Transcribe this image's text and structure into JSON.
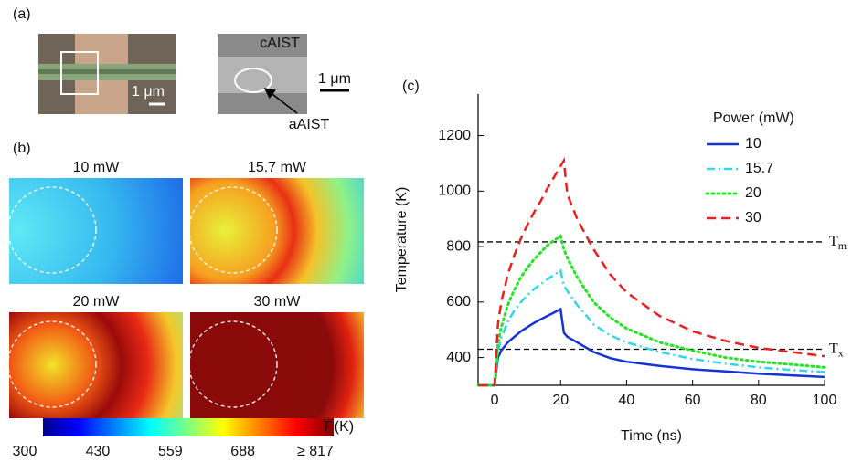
{
  "panels": {
    "a": {
      "label": "(a)",
      "scale_left": "1 μm",
      "scale_right": "1 μm",
      "label_crystal": "cAIST",
      "label_amorphous": "aAIST"
    },
    "b": {
      "label": "(b)",
      "maps": [
        {
          "title": "10 mW"
        },
        {
          "title": "15.7 mW"
        },
        {
          "title": "20 mW"
        },
        {
          "title": "30 mW"
        }
      ],
      "colorbar": {
        "label_symbol": "T",
        "label_unit": "(K)",
        "lim": [
          300,
          817
        ],
        "ticks": [
          300,
          430,
          559,
          688,
          {
            "value": 817,
            "label": "≥ 817"
          }
        ]
      }
    }
  },
  "chart_data": {
    "type": "line",
    "label": "(c)",
    "x_label": "Time (ns)",
    "y_label": "Temperature (K)",
    "xlim": [
      -5,
      100
    ],
    "ylim": [
      300,
      1350
    ],
    "xticks": [
      0,
      20,
      40,
      60,
      80,
      100
    ],
    "yticks": [
      400,
      600,
      800,
      1000,
      1200
    ],
    "legend_title": "Power (mW)",
    "x": [
      -5,
      0,
      1,
      2,
      4,
      6,
      8,
      10,
      12,
      14,
      16,
      18,
      20,
      21,
      22,
      25,
      30,
      35,
      40,
      50,
      60,
      70,
      80,
      90,
      100
    ],
    "series": [
      {
        "name": "10",
        "color": "#1533d6",
        "dash": "solid",
        "values": [
          300,
          300,
          400,
          425,
          455,
          475,
          495,
          510,
          525,
          538,
          550,
          562,
          575,
          490,
          475,
          455,
          420,
          398,
          385,
          370,
          358,
          350,
          342,
          336,
          330
        ]
      },
      {
        "name": "15.7",
        "color": "#2fd8ea",
        "dash": "dashdot",
        "values": [
          300,
          300,
          420,
          470,
          530,
          570,
          600,
          625,
          648,
          665,
          682,
          698,
          714,
          660,
          640,
          590,
          520,
          480,
          455,
          420,
          395,
          378,
          365,
          355,
          348
        ]
      },
      {
        "name": "20",
        "color": "#22e622",
        "dash": "dotted",
        "values": [
          300,
          300,
          450,
          510,
          590,
          645,
          690,
          725,
          755,
          780,
          805,
          822,
          838,
          790,
          760,
          690,
          600,
          545,
          505,
          455,
          425,
          400,
          385,
          375,
          365
        ]
      },
      {
        "name": "30",
        "color": "#e82020",
        "dash": "dashed",
        "values": [
          300,
          300,
          520,
          600,
          700,
          770,
          830,
          880,
          925,
          965,
          1010,
          1050,
          1090,
          1110,
          990,
          900,
          790,
          700,
          635,
          550,
          495,
          460,
          435,
          420,
          405
        ]
      }
    ],
    "reference_lines": [
      {
        "value": 817,
        "label": "T",
        "sub": "m"
      },
      {
        "value": 430,
        "label": "T",
        "sub": "x"
      }
    ]
  }
}
